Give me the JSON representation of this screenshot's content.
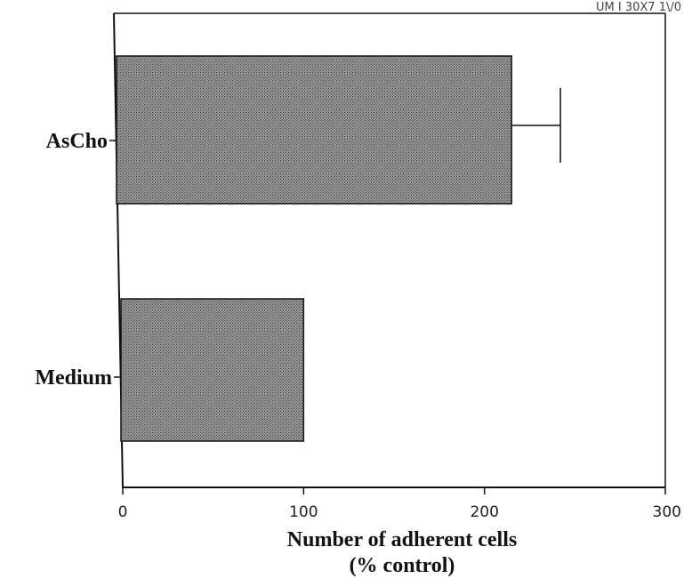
{
  "corner_text": "UM I 30X7 1\\/0",
  "chart_data": {
    "type": "bar",
    "orientation": "horizontal",
    "categories": [
      "AsCho",
      "Medium"
    ],
    "values": [
      215,
      100
    ],
    "error": [
      27,
      null
    ],
    "xlabel_line1": "Number of adherent cells",
    "xlabel_line2": "(% control)",
    "ylabel": "",
    "xlim": [
      0,
      300
    ],
    "xticks": [
      0,
      100,
      200,
      300
    ],
    "grid": false,
    "bar_fill": "#7a7a7a",
    "bar_stroke": "#111111"
  }
}
